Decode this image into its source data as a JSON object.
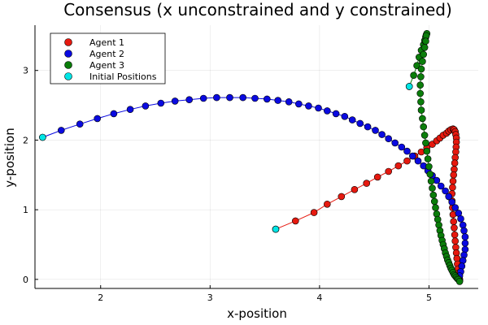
{
  "chart_data": {
    "type": "scatter",
    "title": "Consensus (x unconstrained and y constrained)",
    "xlabel": "x-position",
    "ylabel": "y-position",
    "xlim": [
      1.4,
      5.45
    ],
    "ylim": [
      -0.13,
      3.65
    ],
    "xticks": [
      2,
      3,
      4,
      5
    ],
    "yticks": [
      0,
      1,
      2,
      3
    ],
    "grid": true,
    "legend_position": "top-left",
    "series": [
      {
        "name": "Agent 1",
        "color": "#e6190f",
        "x": [
          3.6,
          3.78,
          3.95,
          4.07,
          4.2,
          4.32,
          4.43,
          4.53,
          4.63,
          4.72,
          4.8,
          4.87,
          4.93,
          4.98,
          5.03,
          5.07,
          5.1,
          5.13,
          5.16,
          5.18,
          5.2,
          5.22,
          5.23,
          5.24,
          5.245,
          5.25,
          5.25,
          5.248,
          5.245,
          5.24,
          5.235,
          5.23,
          5.225,
          5.22,
          5.215,
          5.21,
          5.21,
          5.215,
          5.22,
          5.225,
          5.23,
          5.235,
          5.24,
          5.245,
          5.25,
          5.255,
          5.26,
          5.265,
          5.27,
          5.275,
          5.28,
          5.28
        ],
        "y": [
          0.72,
          0.84,
          0.96,
          1.08,
          1.19,
          1.29,
          1.38,
          1.47,
          1.55,
          1.63,
          1.7,
          1.77,
          1.83,
          1.89,
          1.94,
          1.99,
          2.03,
          2.07,
          2.1,
          2.13,
          2.15,
          2.16,
          2.15,
          2.12,
          2.08,
          2.03,
          1.97,
          1.9,
          1.83,
          1.75,
          1.67,
          1.58,
          1.5,
          1.41,
          1.32,
          1.23,
          1.13,
          1.03,
          0.93,
          0.83,
          0.74,
          0.64,
          0.55,
          0.46,
          0.38,
          0.3,
          0.22,
          0.15,
          0.09,
          0.04,
          0.0,
          -0.02
        ]
      },
      {
        "name": "Agent 2",
        "color": "#0a0ae0",
        "x": [
          1.47,
          1.64,
          1.81,
          1.97,
          2.12,
          2.27,
          2.41,
          2.55,
          2.68,
          2.81,
          2.94,
          3.06,
          3.18,
          3.3,
          3.41,
          3.52,
          3.62,
          3.72,
          3.81,
          3.9,
          3.99,
          4.07,
          4.15,
          4.23,
          4.3,
          4.37,
          4.44,
          4.51,
          4.57,
          4.63,
          4.69,
          4.75,
          4.8,
          4.85,
          4.9,
          4.95,
          4.99,
          5.03,
          5.07,
          5.11,
          5.15,
          5.18,
          5.21,
          5.24,
          5.27,
          5.29,
          5.31,
          5.32,
          5.33,
          5.33,
          5.33,
          5.32,
          5.31,
          5.3,
          5.29,
          5.28,
          5.27
        ],
        "y": [
          2.04,
          2.14,
          2.23,
          2.31,
          2.38,
          2.44,
          2.49,
          2.53,
          2.56,
          2.58,
          2.6,
          2.61,
          2.61,
          2.61,
          2.6,
          2.59,
          2.57,
          2.55,
          2.52,
          2.49,
          2.46,
          2.42,
          2.38,
          2.34,
          2.29,
          2.24,
          2.19,
          2.14,
          2.08,
          2.02,
          1.96,
          1.9,
          1.84,
          1.77,
          1.7,
          1.63,
          1.56,
          1.49,
          1.42,
          1.34,
          1.27,
          1.19,
          1.11,
          1.03,
          0.95,
          0.87,
          0.78,
          0.7,
          0.61,
          0.52,
          0.43,
          0.35,
          0.27,
          0.19,
          0.11,
          0.05,
          0.0
        ]
      },
      {
        "name": "Agent 3",
        "color": "#0a7d0a",
        "x": [
          4.82,
          4.86,
          4.89,
          4.91,
          4.93,
          4.95,
          4.96,
          4.97,
          4.975,
          4.98,
          4.975,
          4.97,
          4.96,
          4.95,
          4.94,
          4.93,
          4.925,
          4.92,
          4.92,
          4.925,
          4.93,
          4.94,
          4.95,
          4.96,
          4.97,
          4.98,
          4.99,
          5.0,
          5.01,
          5.02,
          5.03,
          5.04,
          5.05,
          5.06,
          5.07,
          5.08,
          5.09,
          5.1,
          5.11,
          5.12,
          5.13,
          5.14,
          5.15,
          5.16,
          5.17,
          5.18,
          5.19,
          5.2,
          5.21,
          5.22,
          5.23,
          5.24,
          5.25,
          5.26,
          5.27,
          5.28
        ],
        "y": [
          2.77,
          2.93,
          3.07,
          3.19,
          3.29,
          3.37,
          3.43,
          3.48,
          3.51,
          3.53,
          3.5,
          3.42,
          3.33,
          3.23,
          3.13,
          3.02,
          2.91,
          2.79,
          2.67,
          2.55,
          2.43,
          2.31,
          2.19,
          2.07,
          1.96,
          1.84,
          1.73,
          1.62,
          1.51,
          1.41,
          1.31,
          1.21,
          1.12,
          1.03,
          0.94,
          0.86,
          0.78,
          0.7,
          0.63,
          0.56,
          0.5,
          0.44,
          0.38,
          0.33,
          0.28,
          0.24,
          0.2,
          0.16,
          0.13,
          0.1,
          0.07,
          0.05,
          0.03,
          0.01,
          0.0,
          -0.03
        ]
      },
      {
        "name": "Initial Positions",
        "color": "#00e5e5",
        "x": [
          3.6,
          1.47,
          4.82
        ],
        "y": [
          0.72,
          2.04,
          2.77
        ]
      }
    ]
  }
}
